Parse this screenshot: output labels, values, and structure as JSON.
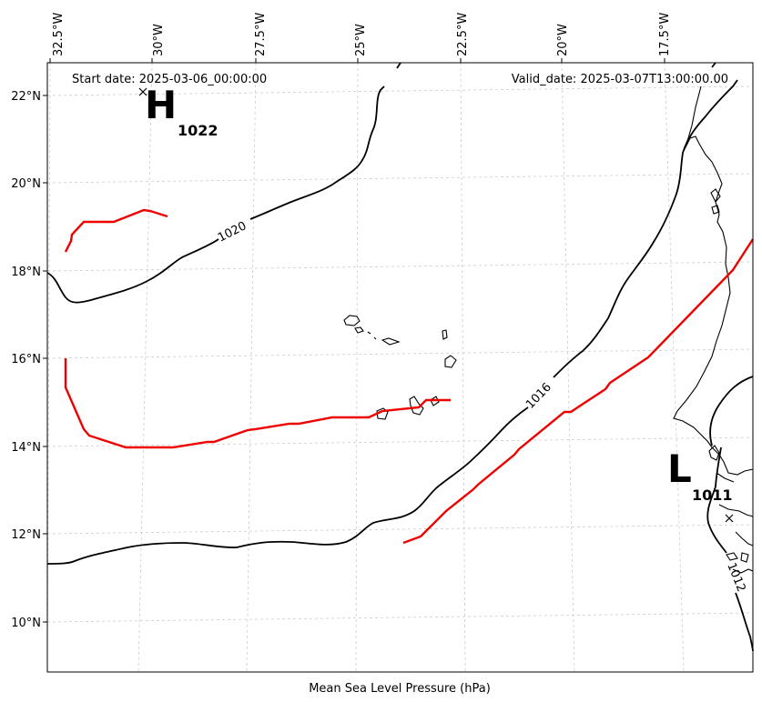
{
  "header": {
    "start_date": "Start date: 2025-03-06_00:00:00",
    "valid_date": "Valid_date: 2025-03-07T13:00:00.00"
  },
  "axis": {
    "xlabel": "Mean Sea Level Pressure (hPa)",
    "lon_ticks": [
      "32.5°W",
      "30°W",
      "27.5°W",
      "25°W",
      "22.5°W",
      "20°W",
      "17.5°W"
    ],
    "lat_ticks": [
      "22°N",
      "20°N",
      "18°N",
      "16°N",
      "14°N",
      "12°N",
      "10°N"
    ]
  },
  "pressure_centers": {
    "high": {
      "symbol": "H",
      "value": "1022"
    },
    "low": {
      "symbol": "L",
      "value": "1011"
    }
  },
  "isobar_labels": {
    "a": "1020",
    "b": "1016",
    "c": "1012"
  },
  "colors": {
    "isobar": "#000000",
    "front": "#ee0000",
    "gridline": "#cccccc"
  },
  "chart_data": {
    "type": "map",
    "projection": "lat-lon contour map",
    "lon_range": [
      "33.5°W",
      "16°W"
    ],
    "lat_range": [
      "9°N",
      "22.7°N"
    ],
    "grid": true,
    "isobars_hPa": [
      1020,
      1016,
      1012
    ],
    "high_center": {
      "lon": -30.0,
      "lat": 22.0,
      "pressure": 1022
    },
    "low_center": {
      "lon": -16.5,
      "lat": 12.4,
      "pressure": 1011
    }
  }
}
